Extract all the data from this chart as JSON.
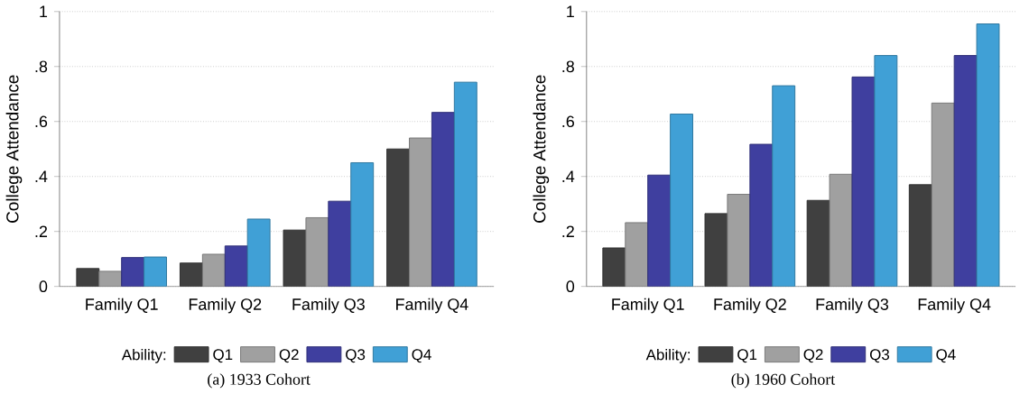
{
  "chart_data": [
    {
      "type": "bar",
      "ylabel": "College Attendance",
      "categories": [
        "Family Q1",
        "Family Q2",
        "Family Q3",
        "Family Q4"
      ],
      "ylim": [
        0,
        1
      ],
      "yticks": [
        0,
        {
          "value": 0.2,
          "label": ".2"
        },
        {
          "value": 0.4,
          "label": ".4"
        },
        {
          "value": 0.6,
          "label": ".6"
        },
        {
          "value": 0.8,
          "label": ".8"
        },
        1
      ],
      "grid": "y",
      "legend": "bottom",
      "legend_title": "Ability:",
      "annotations": [
        "(a) 1933 Cohort"
      ],
      "series": [
        {
          "name": "Q1",
          "color": "#404040",
          "values": [
            0.065,
            0.085,
            0.205,
            0.5
          ]
        },
        {
          "name": "Q2",
          "color": "#a0a0a0",
          "values": [
            0.055,
            0.117,
            0.25,
            0.54
          ]
        },
        {
          "name": "Q3",
          "color": "#3f3f9f",
          "values": [
            0.105,
            0.147,
            0.31,
            0.633
          ]
        },
        {
          "name": "Q4",
          "color": "#40a0d6",
          "values": [
            0.107,
            0.245,
            0.45,
            0.743
          ]
        }
      ]
    },
    {
      "type": "bar",
      "ylabel": "College Attendance",
      "categories": [
        "Family Q1",
        "Family Q2",
        "Family Q3",
        "Family Q4"
      ],
      "ylim": [
        0,
        1
      ],
      "yticks": [
        0,
        {
          "value": 0.2,
          "label": ".2"
        },
        {
          "value": 0.4,
          "label": ".4"
        },
        {
          "value": 0.6,
          "label": ".6"
        },
        {
          "value": 0.8,
          "label": ".8"
        },
        1
      ],
      "grid": "y",
      "legend": "bottom",
      "legend_title": "Ability:",
      "annotations": [
        "(b) 1960 Cohort"
      ],
      "series": [
        {
          "name": "Q1",
          "color": "#404040",
          "values": [
            0.14,
            0.265,
            0.313,
            0.37
          ]
        },
        {
          "name": "Q2",
          "color": "#a0a0a0",
          "values": [
            0.232,
            0.335,
            0.408,
            0.667
          ]
        },
        {
          "name": "Q3",
          "color": "#3f3f9f",
          "values": [
            0.405,
            0.517,
            0.762,
            0.84
          ]
        },
        {
          "name": "Q4",
          "color": "#40a0d6",
          "values": [
            0.627,
            0.73,
            0.84,
            0.955
          ]
        }
      ]
    }
  ]
}
